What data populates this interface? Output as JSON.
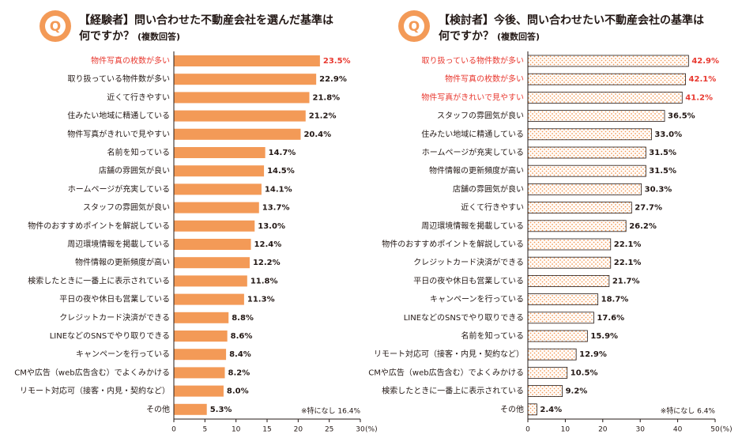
{
  "chart_data": [
    {
      "type": "barh",
      "title": [
        "【経験者】問い合わせた不動産会社を選んだ基準は",
        "何ですか？"
      ],
      "subtitle": "(複数回答)",
      "categories": [
        "物件写真の枚数が多い",
        "取り扱っている物件数が多い",
        "近くて行きやすい",
        "住みたい地域に精通している",
        "物件写真がきれいで見やすい",
        "名前を知っている",
        "店舗の雰囲気が良い",
        "ホームページが充実している",
        "スタッフの雰囲気が良い",
        "物件のおすすめポイントを解説している",
        "周辺環境情報を掲載している",
        "物件情報の更新頻度が高い",
        "検索したときに一番上に表示されている",
        "平日の夜や休日も営業している",
        "クレジットカード決済ができる",
        "LINEなどのSNSでやり取りできる",
        "キャンペーンを行っている",
        "CMや広告（web広告含む）でよくみかける",
        "リモート対応可（接客・内見・契約など）",
        "その他"
      ],
      "values": [
        23.5,
        22.9,
        21.8,
        21.2,
        20.4,
        14.7,
        14.5,
        14.1,
        13.7,
        13.0,
        12.4,
        12.2,
        11.8,
        11.3,
        8.8,
        8.6,
        8.4,
        8.2,
        8.0,
        5.3
      ],
      "value_labels": [
        "23.5%",
        "22.9%",
        "21.8%",
        "21.2%",
        "20.4%",
        "14.7%",
        "14.5%",
        "14.1%",
        "13.7%",
        "13.0%",
        "12.4%",
        "12.2%",
        "11.8%",
        "11.3%",
        "8.8%",
        "8.6%",
        "8.4%",
        "8.2%",
        "8.0%",
        "5.3%"
      ],
      "color": "#f39a57",
      "pattern": "solid",
      "highlight_top": 1,
      "highlight_color": "#e8382f",
      "xlim": [
        0,
        30
      ],
      "xticks": [
        0,
        5,
        10,
        15,
        20,
        25,
        30
      ],
      "x_unit": "(%)",
      "note": "※特になし 16.4%"
    },
    {
      "type": "barh",
      "title": [
        "【検討者】今後、問い合わせたい不動産会社の基準は",
        "何ですか？"
      ],
      "subtitle": "(複数回答)",
      "categories": [
        "取り扱っている物件数が多い",
        "物件写真の枚数が多い",
        "物件写真がきれいで見やすい",
        "スタッフの雰囲気が良い",
        "住みたい地域に精通している",
        "ホームページが充実している",
        "物件情報の更新頻度が高い",
        "店舗の雰囲気が良い",
        "近くて行きやすい",
        "周辺環境情報を掲載している",
        "物件のおすすめポイントを解説している",
        "クレジットカード決済ができる",
        "平日の夜や休日も営業している",
        "キャンペーンを行っている",
        "LINEなどのSNSでやり取りできる",
        "名前を知っている",
        "リモート対応可（接客・内見・契約など）",
        "CMや広告（web広告含む）でよくみかける",
        "検索したときに一番上に表示されている",
        "その他"
      ],
      "values": [
        42.9,
        42.1,
        41.2,
        36.5,
        33.0,
        31.5,
        31.5,
        30.3,
        27.7,
        26.2,
        22.1,
        22.1,
        21.7,
        18.7,
        17.6,
        15.9,
        12.9,
        10.5,
        9.2,
        2.4
      ],
      "value_labels": [
        "42.9%",
        "42.1%",
        "41.2%",
        "36.5%",
        "33.0%",
        "31.5%",
        "31.5%",
        "30.3%",
        "27.7%",
        "26.2%",
        "22.1%",
        "22.1%",
        "21.7%",
        "18.7%",
        "17.6%",
        "15.9%",
        "12.9%",
        "10.5%",
        "9.2%",
        "2.4%"
      ],
      "color": "#f39a57",
      "pattern": "dots",
      "highlight_top": 3,
      "highlight_color": "#e8382f",
      "xlim": [
        0,
        50
      ],
      "xticks": [
        0,
        10,
        20,
        30,
        40,
        50
      ],
      "x_unit": "(%)",
      "note": "※特になし 6.4%"
    }
  ]
}
